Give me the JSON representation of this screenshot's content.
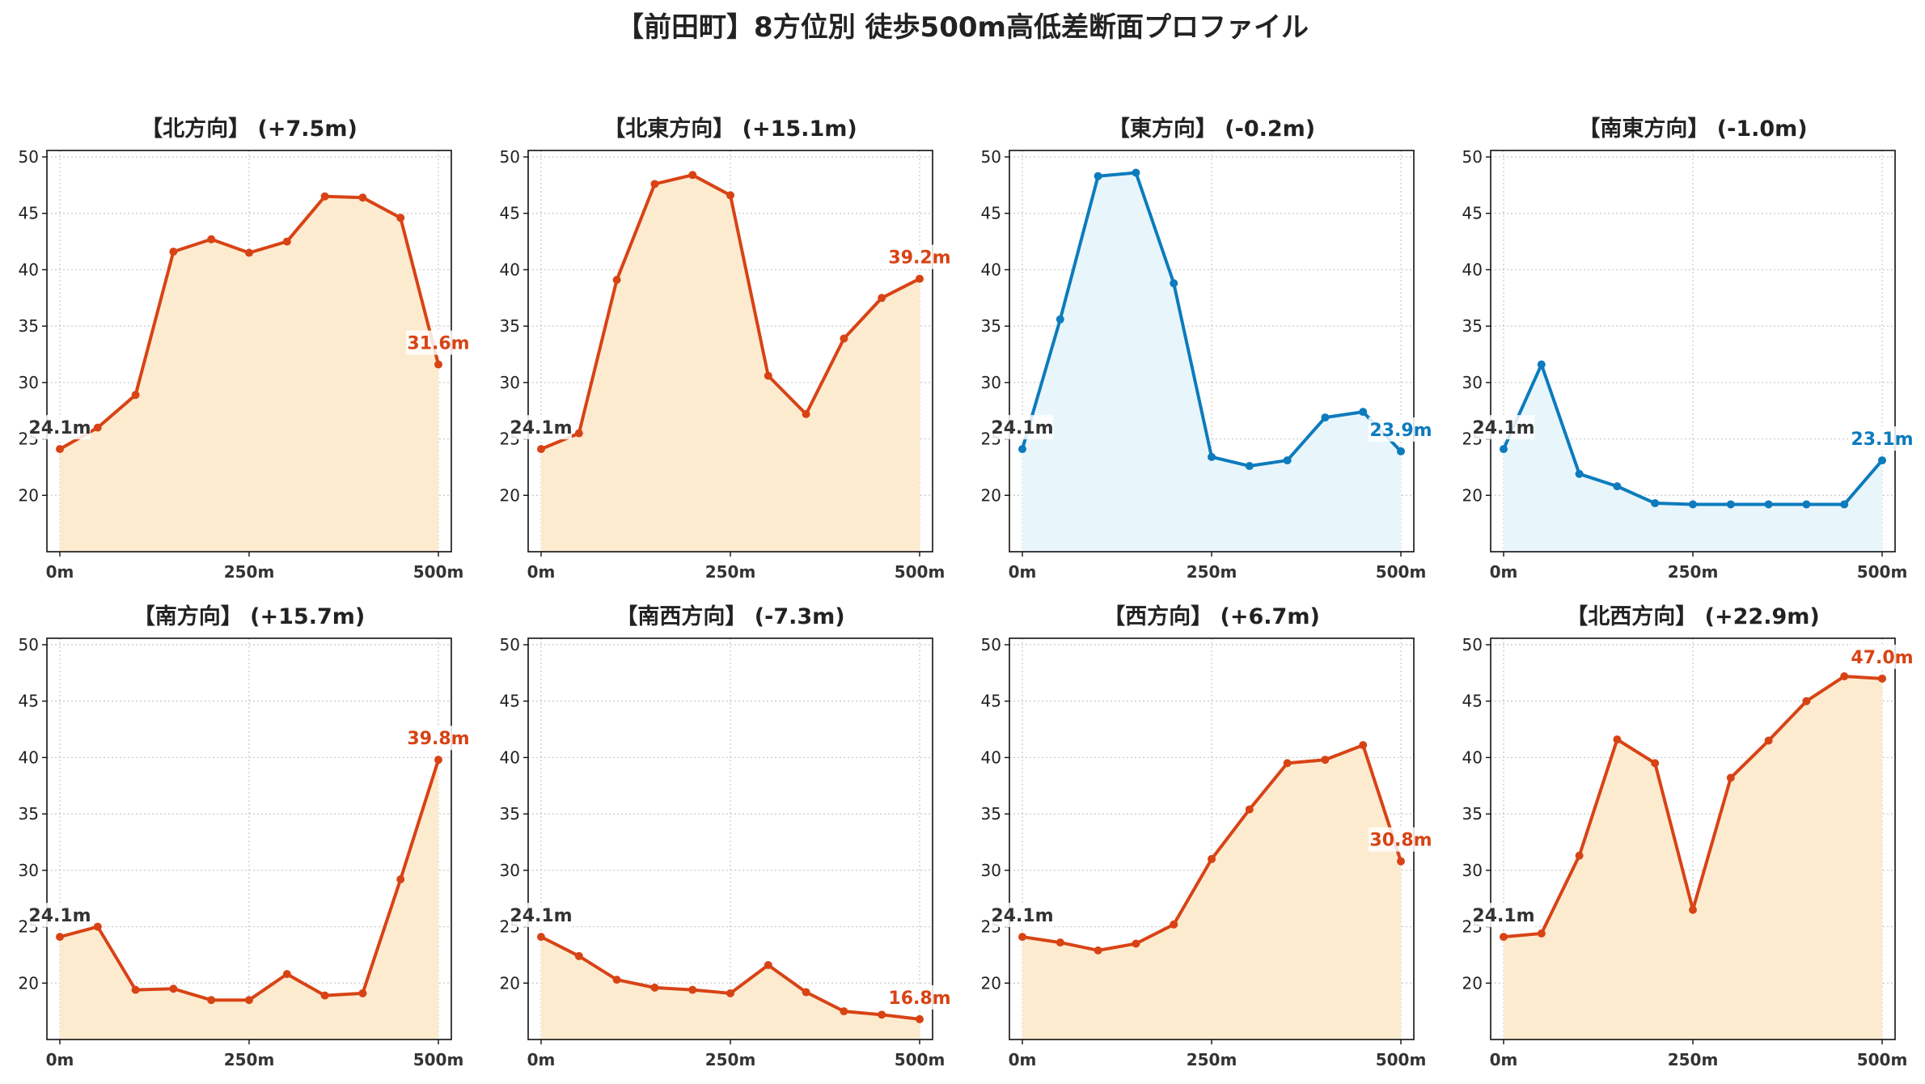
{
  "suptitle": "【前田町】8方位別 徒歩500m高低差断面プロファイル",
  "colors": {
    "up_line": "#d84315",
    "up_fill": "#fdebd0",
    "down_line": "#0d7bbd",
    "down_fill": "#e8f6fc",
    "start_label": "#333333"
  },
  "chart_data": [
    {
      "type": "area",
      "title": "【北方向】 (+7.5m)",
      "trend": "up",
      "x": [
        0,
        50,
        100,
        150,
        200,
        250,
        300,
        350,
        400,
        450,
        500
      ],
      "values": [
        24.1,
        26.0,
        28.9,
        41.6,
        42.7,
        41.5,
        42.5,
        46.5,
        46.4,
        44.6,
        31.6
      ],
      "start_label": "24.1m",
      "end_label": "31.6m",
      "xticks": [
        "0m",
        "250m",
        "500m"
      ],
      "yticks": [
        20,
        25,
        30,
        35,
        40,
        45,
        50
      ],
      "ylim": [
        15,
        50
      ],
      "xlim": [
        0,
        500
      ],
      "grid": true
    },
    {
      "type": "area",
      "title": "【北東方向】 (+15.1m)",
      "trend": "up",
      "x": [
        0,
        50,
        100,
        150,
        200,
        250,
        300,
        350,
        400,
        450,
        500
      ],
      "values": [
        24.1,
        25.5,
        39.1,
        47.6,
        48.4,
        46.6,
        30.6,
        27.2,
        33.9,
        37.5,
        39.2
      ],
      "start_label": "24.1m",
      "end_label": "39.2m",
      "xticks": [
        "0m",
        "250m",
        "500m"
      ],
      "yticks": [
        20,
        25,
        30,
        35,
        40,
        45,
        50
      ],
      "ylim": [
        15,
        50
      ],
      "xlim": [
        0,
        500
      ],
      "grid": true
    },
    {
      "type": "area",
      "title": "【東方向】 (-0.2m)",
      "trend": "down",
      "x": [
        0,
        50,
        100,
        150,
        200,
        250,
        300,
        350,
        400,
        450,
        500
      ],
      "values": [
        24.1,
        35.6,
        48.3,
        48.6,
        38.8,
        23.4,
        22.6,
        23.1,
        26.9,
        27.4,
        23.9
      ],
      "start_label": "24.1m",
      "end_label": "23.9m",
      "xticks": [
        "0m",
        "250m",
        "500m"
      ],
      "yticks": [
        20,
        25,
        30,
        35,
        40,
        45,
        50
      ],
      "ylim": [
        15,
        50
      ],
      "xlim": [
        0,
        500
      ],
      "grid": true
    },
    {
      "type": "area",
      "title": "【南東方向】 (-1.0m)",
      "trend": "down",
      "x": [
        0,
        50,
        100,
        150,
        200,
        250,
        300,
        350,
        400,
        450,
        500
      ],
      "values": [
        24.1,
        31.6,
        21.9,
        20.8,
        19.3,
        19.2,
        19.2,
        19.2,
        19.2,
        19.2,
        23.1
      ],
      "start_label": "24.1m",
      "end_label": "23.1m",
      "xticks": [
        "0m",
        "250m",
        "500m"
      ],
      "yticks": [
        20,
        25,
        30,
        35,
        40,
        45,
        50
      ],
      "ylim": [
        15,
        50
      ],
      "xlim": [
        0,
        500
      ],
      "grid": true
    },
    {
      "type": "area",
      "title": "【南方向】 (+15.7m)",
      "trend": "up",
      "x": [
        0,
        50,
        100,
        150,
        200,
        250,
        300,
        350,
        400,
        450,
        500
      ],
      "values": [
        24.1,
        25.0,
        19.4,
        19.5,
        18.5,
        18.5,
        20.8,
        18.9,
        19.1,
        29.2,
        39.8
      ],
      "start_label": "24.1m",
      "end_label": "39.8m",
      "xticks": [
        "0m",
        "250m",
        "500m"
      ],
      "yticks": [
        20,
        25,
        30,
        35,
        40,
        45,
        50
      ],
      "ylim": [
        15,
        50
      ],
      "xlim": [
        0,
        500
      ],
      "grid": true
    },
    {
      "type": "area",
      "title": "【南西方向】 (-7.3m)",
      "trend": "up",
      "x": [
        0,
        50,
        100,
        150,
        200,
        250,
        300,
        350,
        400,
        450,
        500
      ],
      "values": [
        24.1,
        22.4,
        20.3,
        19.6,
        19.4,
        19.1,
        21.6,
        19.2,
        17.5,
        17.2,
        16.8
      ],
      "start_label": "24.1m",
      "end_label": "16.8m",
      "xticks": [
        "0m",
        "250m",
        "500m"
      ],
      "yticks": [
        20,
        25,
        30,
        35,
        40,
        45,
        50
      ],
      "ylim": [
        15,
        50
      ],
      "xlim": [
        0,
        500
      ],
      "grid": true
    },
    {
      "type": "area",
      "title": "【西方向】 (+6.7m)",
      "trend": "up",
      "x": [
        0,
        50,
        100,
        150,
        200,
        250,
        300,
        350,
        400,
        450,
        500
      ],
      "values": [
        24.1,
        23.6,
        22.9,
        23.5,
        25.2,
        31.0,
        35.4,
        39.5,
        39.8,
        41.1,
        30.8
      ],
      "start_label": "24.1m",
      "end_label": "30.8m",
      "xticks": [
        "0m",
        "250m",
        "500m"
      ],
      "yticks": [
        20,
        25,
        30,
        35,
        40,
        45,
        50
      ],
      "ylim": [
        15,
        50
      ],
      "xlim": [
        0,
        500
      ],
      "grid": true
    },
    {
      "type": "area",
      "title": "【北西方向】 (+22.9m)",
      "trend": "up",
      "x": [
        0,
        50,
        100,
        150,
        200,
        250,
        300,
        350,
        400,
        450,
        500
      ],
      "values": [
        24.1,
        24.4,
        31.3,
        41.6,
        39.5,
        26.5,
        38.2,
        41.5,
        45.0,
        47.2,
        47.0
      ],
      "start_label": "24.1m",
      "end_label": "47.0m",
      "xticks": [
        "0m",
        "250m",
        "500m"
      ],
      "yticks": [
        20,
        25,
        30,
        35,
        40,
        45,
        50
      ],
      "ylim": [
        15,
        50
      ],
      "xlim": [
        0,
        500
      ],
      "grid": true
    }
  ]
}
